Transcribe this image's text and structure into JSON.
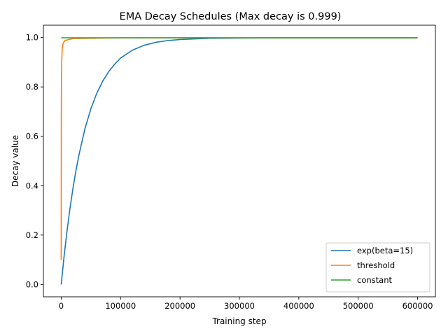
{
  "chart_data": {
    "type": "line",
    "title": "EMA Decay Schedules (Max decay is 0.999)",
    "xlabel": "Training step",
    "ylabel": "Decay value",
    "xlim": [
      -30000,
      630000
    ],
    "ylim": [
      -0.05,
      1.05
    ],
    "xticks": [
      0,
      100000,
      200000,
      300000,
      400000,
      500000,
      600000
    ],
    "xtick_labels": [
      "0",
      "100000",
      "200000",
      "300000",
      "400000",
      "500000",
      "600000"
    ],
    "yticks": [
      0.0,
      0.2,
      0.4,
      0.6,
      0.8,
      1.0
    ],
    "ytick_labels": [
      "0.0",
      "0.2",
      "0.4",
      "0.6",
      "0.8",
      "1.0"
    ],
    "grid": false,
    "legend_position": "lower-right",
    "series": [
      {
        "name": "exp(beta=15)",
        "color": "#1f77b4",
        "x": [
          0,
          5000,
          10000,
          15000,
          20000,
          25000,
          30000,
          40000,
          50000,
          60000,
          70000,
          80000,
          90000,
          100000,
          120000,
          140000,
          160000,
          180000,
          200000,
          250000,
          300000,
          350000,
          400000,
          500000,
          600000
        ],
        "y": [
          0.0,
          0.118,
          0.221,
          0.312,
          0.393,
          0.464,
          0.526,
          0.631,
          0.712,
          0.775,
          0.824,
          0.862,
          0.892,
          0.917,
          0.949,
          0.969,
          0.981,
          0.988,
          0.992,
          0.997,
          0.998,
          0.999,
          0.999,
          0.999,
          0.999
        ]
      },
      {
        "name": "threshold",
        "color": "#ff7f0e",
        "x": [
          0,
          100,
          200,
          400,
          800,
          1500,
          3000,
          6000,
          20000,
          100000,
          300000,
          600000
        ],
        "y": [
          0.1,
          0.5,
          0.7,
          0.83,
          0.9,
          0.95,
          0.975,
          0.988,
          0.996,
          0.999,
          0.999,
          0.999
        ]
      },
      {
        "name": "constant",
        "color": "#2ca02c",
        "x": [
          0,
          600000
        ],
        "y": [
          0.999,
          0.999
        ]
      }
    ]
  }
}
